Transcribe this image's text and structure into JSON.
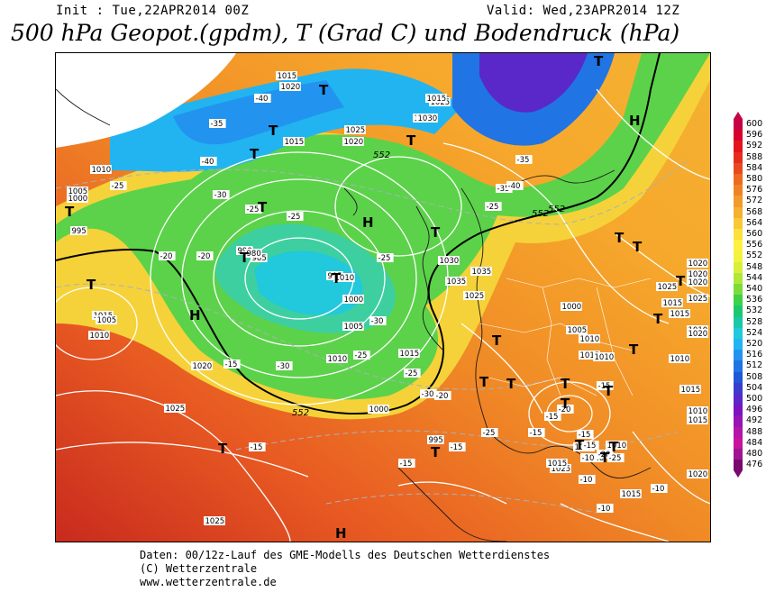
{
  "header": {
    "init": "Init : Tue,22APR2014 00Z",
    "valid": "Valid: Wed,23APR2014 12Z",
    "title": "500 hPa Geopot.(gpdm), T (Grad C) und Bodendruck (hPa)"
  },
  "legend": {
    "levels": [
      "600",
      "596",
      "592",
      "588",
      "584",
      "580",
      "576",
      "572",
      "568",
      "564",
      "560",
      "556",
      "552",
      "548",
      "544",
      "540",
      "536",
      "532",
      "528",
      "524",
      "520",
      "516",
      "512",
      "508",
      "504",
      "500",
      "496",
      "492",
      "488",
      "484",
      "480",
      "476"
    ],
    "colors": [
      "#c80046",
      "#d8002e",
      "#e4141e",
      "#e62d1e",
      "#e84a20",
      "#ec6a22",
      "#f08226",
      "#f29a2a",
      "#f4b030",
      "#f8c836",
      "#fce03c",
      "#fff040",
      "#f2f240",
      "#d8f03c",
      "#b0e83a",
      "#7cdc3c",
      "#3ed246",
      "#1ac872",
      "#18c8a8",
      "#22c8dc",
      "#22b4f0",
      "#2294f0",
      "#2074e4",
      "#2058d8",
      "#3a3cd0",
      "#5a28c8",
      "#7a14c0",
      "#9614b4",
      "#b414a8",
      "#c8149c",
      "#a01490",
      "#780a6e"
    ]
  },
  "map_labels": {
    "pressure": [
      "1015",
      "1020",
      "1025",
      "1015",
      "1010",
      "1030",
      "1025",
      "1020",
      "1015",
      "1010",
      "1005",
      "1000",
      "995",
      "990",
      "985",
      "980",
      "995",
      "1010",
      "1000",
      "1005",
      "1010",
      "1015",
      "1020",
      "1025",
      "1030",
      "1035",
      "1035",
      "1025",
      "1000",
      "1005",
      "1010",
      "1015",
      "1010",
      "1020",
      "1020",
      "1025",
      "1015",
      "1010",
      "1005",
      "1000",
      "995",
      "1015",
      "1010",
      "1015",
      "1025",
      "1020",
      "1020",
      "1020",
      "1025",
      "1015",
      "1010",
      "1020",
      "1010",
      "1015",
      "1010",
      "1015",
      "1020",
      "1015",
      "1025"
    ],
    "temperature": [
      "-40",
      "-35",
      "-40",
      "-30",
      "-25",
      "-25",
      "-20",
      "-15",
      "-30",
      "-25",
      "-30",
      "-25",
      "-20",
      "-15",
      "-25",
      "-15",
      "-15",
      "-10",
      "-10",
      "-20",
      "-25",
      "-35",
      "-40",
      "-35",
      "-30",
      "-25",
      "-25",
      "-20",
      "-15",
      "-20",
      "-25",
      "-15",
      "-15",
      "-15",
      "-15",
      "-10",
      "-10"
    ],
    "height": [
      "552",
      "552",
      "552",
      "552"
    ],
    "centers": [
      "T",
      "T",
      "T",
      "T",
      "T",
      "T",
      "T",
      "T",
      "T",
      "T",
      "T",
      "T",
      "T",
      "T",
      "T",
      "T",
      "T",
      "T",
      "H",
      "H",
      "H",
      "T",
      "T",
      "T",
      "T",
      "T",
      "T",
      "T",
      "T",
      "H",
      "T"
    ]
  },
  "footer": {
    "line1": "Daten: 00/12z-Lauf des GME-Modells des Deutschen Wetterdienstes",
    "line2": "(C) Wetterzentrale",
    "line3": "www.wetterzentrale.de"
  }
}
